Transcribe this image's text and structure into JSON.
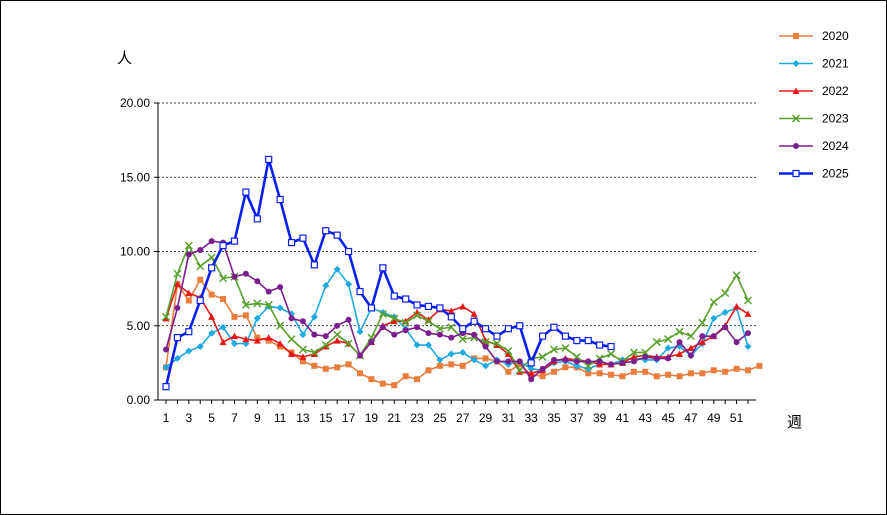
{
  "chart_data": {
    "type": "line",
    "title": "",
    "ylabel": "人",
    "xlabel": "週",
    "ylim": [
      0,
      20
    ],
    "yticks": [
      "0.00",
      "5.00",
      "10.00",
      "15.00",
      "20.00"
    ],
    "xlim": [
      1,
      52
    ],
    "xticks": [
      "1",
      "3",
      "5",
      "7",
      "9",
      "11",
      "13",
      "15",
      "17",
      "19",
      "21",
      "23",
      "25",
      "27",
      "29",
      "31",
      "33",
      "35",
      "37",
      "39",
      "41",
      "43",
      "45",
      "47",
      "49",
      "51"
    ],
    "grid": "horizontal dashed at 5, 10, 15",
    "legend": "right",
    "series": [
      {
        "name": "2020",
        "color": "#e87d3e",
        "marker": "square",
        "values": [
          2.2,
          7.8,
          6.7,
          8.1,
          7.1,
          6.8,
          5.6,
          5.7,
          4.2,
          4.0,
          3.6,
          3.2,
          2.6,
          2.3,
          2.1,
          2.2,
          2.4,
          1.8,
          1.4,
          1.1,
          1.0,
          1.6,
          1.4,
          2.0,
          2.3,
          2.4,
          2.3,
          2.8,
          2.8,
          2.6,
          1.9,
          2.4,
          1.7,
          1.6,
          1.9,
          2.2,
          2.2,
          1.8,
          1.8,
          1.7,
          1.6,
          1.9,
          1.9,
          1.6,
          1.7,
          1.6,
          1.8,
          1.8,
          2.0,
          1.9,
          2.1,
          2.0,
          2.3
        ]
      },
      {
        "name": "2021",
        "color": "#1ea9e0",
        "marker": "diamond",
        "values": [
          2.2,
          2.8,
          3.3,
          3.6,
          4.5,
          4.9,
          3.8,
          3.8,
          5.5,
          6.3,
          6.2,
          5.8,
          4.4,
          5.6,
          7.7,
          8.8,
          7.8,
          4.6,
          6.2,
          5.9,
          5.6,
          4.8,
          3.7,
          3.7,
          2.7,
          3.1,
          3.2,
          2.7,
          2.3,
          2.7,
          2.4,
          2.6,
          2.1,
          2.0,
          2.5,
          2.6,
          2.3,
          2.1,
          2.4,
          2.4,
          2.7,
          2.8,
          2.7,
          2.7,
          3.5,
          3.6,
          3.0,
          3.8,
          5.5,
          5.9,
          6.2,
          3.6
        ]
      },
      {
        "name": "2022",
        "color": "#e81818",
        "marker": "triangle",
        "values": [
          5.5,
          7.8,
          7.2,
          6.9,
          5.6,
          3.9,
          4.3,
          4.1,
          4.0,
          4.2,
          3.8,
          3.1,
          2.9,
          3.1,
          3.6,
          4.0,
          3.8,
          3.0,
          3.9,
          5.0,
          5.3,
          5.3,
          5.9,
          5.4,
          6.1,
          6.0,
          6.3,
          5.8,
          4.0,
          3.7,
          3.1,
          1.9,
          1.8,
          2.0,
          2.6,
          2.8,
          2.7,
          2.6,
          2.4,
          2.4,
          2.5,
          2.9,
          3.0,
          2.9,
          2.9,
          3.1,
          3.5,
          3.9,
          4.3,
          5.0,
          6.3,
          5.8
        ]
      },
      {
        "name": "2023",
        "color": "#5aa02c",
        "marker": "x",
        "values": [
          5.6,
          8.5,
          10.4,
          9.0,
          9.6,
          8.2,
          8.3,
          6.4,
          6.5,
          6.4,
          5.0,
          4.1,
          3.4,
          3.2,
          3.7,
          4.4,
          3.8,
          3.0,
          4.2,
          5.8,
          5.5,
          5.2,
          5.7,
          5.3,
          4.8,
          4.9,
          4.1,
          4.2,
          3.9,
          3.8,
          3.3,
          2.0,
          2.8,
          2.9,
          3.4,
          3.5,
          2.9,
          2.3,
          2.8,
          3.1,
          2.6,
          3.2,
          3.2,
          3.9,
          4.1,
          4.6,
          4.3,
          5.2,
          6.6,
          7.2,
          8.4,
          6.7
        ]
      },
      {
        "name": "2024",
        "color": "#7b1f8c",
        "marker": "circle",
        "values": [
          3.4,
          6.2,
          9.8,
          10.1,
          10.7,
          10.6,
          8.3,
          8.5,
          8.0,
          7.3,
          7.6,
          5.5,
          5.3,
          4.4,
          4.3,
          5.0,
          5.4,
          3.0,
          3.9,
          4.9,
          4.4,
          4.7,
          4.9,
          4.5,
          4.4,
          4.2,
          4.5,
          4.4,
          3.6,
          2.6,
          2.6,
          2.6,
          1.4,
          2.1,
          2.7,
          2.7,
          2.6,
          2.6,
          2.6,
          2.4,
          2.5,
          2.6,
          2.9,
          2.8,
          2.8,
          3.9,
          3.0,
          4.3,
          4.3,
          4.9,
          3.9,
          4.5
        ]
      },
      {
        "name": "2025",
        "color": "#0a1ef0",
        "marker": "hollow-square",
        "values": [
          0.9,
          4.2,
          4.6,
          6.7,
          8.9,
          10.4,
          10.7,
          14.0,
          12.2,
          16.2,
          13.5,
          10.6,
          10.9,
          9.1,
          11.4,
          11.1,
          10.0,
          7.3,
          6.2,
          8.9,
          7.0,
          6.8,
          6.4,
          6.3,
          6.2,
          5.6,
          4.8,
          5.3,
          4.8,
          4.3,
          4.8,
          5.0,
          2.5,
          4.3,
          4.9,
          4.3,
          4.0,
          4.0,
          3.7,
          3.6
        ]
      }
    ]
  }
}
